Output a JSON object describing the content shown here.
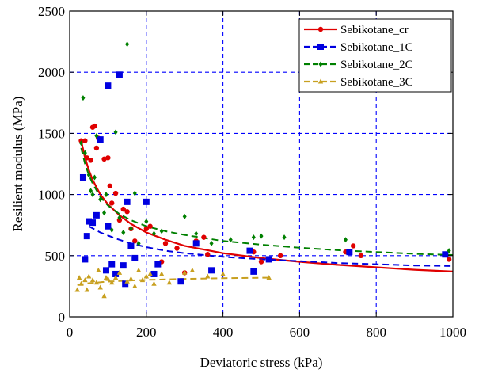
{
  "chart_data": {
    "type": "scatter",
    "title": "",
    "xlabel": "Deviatoric stress (kPa)",
    "ylabel": "Resilient modulus (MPa)",
    "xlim": [
      0,
      1000
    ],
    "ylim": [
      0,
      2500
    ],
    "xticks": [
      0,
      200,
      400,
      600,
      800,
      1000
    ],
    "yticks": [
      0,
      500,
      1000,
      1500,
      2000,
      2500
    ],
    "grid": true,
    "grid_style": "dashed",
    "legend_position": "top-right",
    "series": [
      {
        "name": "Sebikotane_cr",
        "color": "#e00000",
        "marker": "circle",
        "line_style": "solid",
        "points": [
          [
            30,
            1440
          ],
          [
            40,
            1440
          ],
          [
            45,
            1300
          ],
          [
            55,
            1280
          ],
          [
            60,
            1550
          ],
          [
            65,
            1560
          ],
          [
            70,
            1380
          ],
          [
            75,
            1460
          ],
          [
            90,
            1290
          ],
          [
            100,
            1300
          ],
          [
            105,
            1070
          ],
          [
            110,
            930
          ],
          [
            120,
            1010
          ],
          [
            130,
            790
          ],
          [
            140,
            880
          ],
          [
            150,
            860
          ],
          [
            160,
            720
          ],
          [
            170,
            620
          ],
          [
            200,
            720
          ],
          [
            210,
            740
          ],
          [
            240,
            450
          ],
          [
            250,
            600
          ],
          [
            280,
            560
          ],
          [
            300,
            360
          ],
          [
            330,
            620
          ],
          [
            350,
            650
          ],
          [
            360,
            510
          ],
          [
            480,
            530
          ],
          [
            500,
            450
          ],
          [
            550,
            500
          ],
          [
            720,
            530
          ],
          [
            740,
            580
          ],
          [
            760,
            500
          ],
          [
            990,
            470
          ]
        ],
        "fit": [
          [
            30,
            1440
          ],
          [
            40,
            1300
          ],
          [
            50,
            1200
          ],
          [
            60,
            1120
          ],
          [
            80,
            1000
          ],
          [
            100,
            920
          ],
          [
            130,
            830
          ],
          [
            160,
            760
          ],
          [
            200,
            690
          ],
          [
            250,
            630
          ],
          [
            300,
            580
          ],
          [
            400,
            520
          ],
          [
            500,
            480
          ],
          [
            600,
            450
          ],
          [
            700,
            425
          ],
          [
            800,
            405
          ],
          [
            900,
            385
          ],
          [
            1000,
            370
          ]
        ]
      },
      {
        "name": "Sebikotane_1C",
        "color": "#0000e0",
        "marker": "square",
        "line_style": "dashed",
        "points": [
          [
            35,
            1140
          ],
          [
            40,
            470
          ],
          [
            45,
            660
          ],
          [
            50,
            780
          ],
          [
            60,
            770
          ],
          [
            70,
            830
          ],
          [
            80,
            1450
          ],
          [
            95,
            380
          ],
          [
            100,
            1890
          ],
          [
            100,
            740
          ],
          [
            110,
            430
          ],
          [
            120,
            350
          ],
          [
            130,
            1980
          ],
          [
            140,
            420
          ],
          [
            145,
            270
          ],
          [
            150,
            940
          ],
          [
            160,
            580
          ],
          [
            170,
            480
          ],
          [
            200,
            940
          ],
          [
            220,
            350
          ],
          [
            230,
            430
          ],
          [
            290,
            290
          ],
          [
            330,
            600
          ],
          [
            370,
            380
          ],
          [
            470,
            540
          ],
          [
            480,
            370
          ],
          [
            520,
            470
          ],
          [
            730,
            530
          ],
          [
            980,
            510
          ]
        ],
        "fit": [
          [
            50,
            740
          ],
          [
            80,
            690
          ],
          [
            120,
            640
          ],
          [
            160,
            600
          ],
          [
            200,
            570
          ],
          [
            250,
            540
          ],
          [
            300,
            520
          ],
          [
            400,
            490
          ],
          [
            500,
            470
          ],
          [
            600,
            455
          ],
          [
            700,
            440
          ],
          [
            800,
            430
          ],
          [
            900,
            420
          ],
          [
            1000,
            415
          ]
        ]
      },
      {
        "name": "Sebikotane_2C",
        "color": "#008000",
        "marker": "diamond",
        "line_style": "dashed",
        "points": [
          [
            30,
            1420
          ],
          [
            35,
            1790
          ],
          [
            40,
            1340
          ],
          [
            50,
            1160
          ],
          [
            55,
            1030
          ],
          [
            60,
            1000
          ],
          [
            65,
            1140
          ],
          [
            70,
            1480
          ],
          [
            80,
            960
          ],
          [
            90,
            850
          ],
          [
            95,
            1000
          ],
          [
            110,
            710
          ],
          [
            120,
            1510
          ],
          [
            130,
            810
          ],
          [
            140,
            690
          ],
          [
            150,
            2230
          ],
          [
            160,
            720
          ],
          [
            170,
            1010
          ],
          [
            180,
            600
          ],
          [
            200,
            780
          ],
          [
            220,
            680
          ],
          [
            240,
            700
          ],
          [
            300,
            820
          ],
          [
            330,
            680
          ],
          [
            370,
            600
          ],
          [
            420,
            630
          ],
          [
            480,
            650
          ],
          [
            500,
            660
          ],
          [
            560,
            650
          ],
          [
            720,
            630
          ],
          [
            990,
            540
          ]
        ],
        "fit": [
          [
            30,
            1380
          ],
          [
            40,
            1250
          ],
          [
            50,
            1160
          ],
          [
            60,
            1090
          ],
          [
            80,
            980
          ],
          [
            100,
            910
          ],
          [
            130,
            840
          ],
          [
            160,
            790
          ],
          [
            200,
            740
          ],
          [
            250,
            700
          ],
          [
            300,
            670
          ],
          [
            400,
            620
          ],
          [
            500,
            590
          ],
          [
            600,
            565
          ],
          [
            700,
            545
          ],
          [
            800,
            530
          ],
          [
            900,
            515
          ],
          [
            1000,
            505
          ]
        ]
      },
      {
        "name": "Sebikotane_3C",
        "color": "#c8a020",
        "marker": "triangle",
        "line_style": "dashed",
        "points": [
          [
            20,
            220
          ],
          [
            25,
            320
          ],
          [
            30,
            270
          ],
          [
            40,
            300
          ],
          [
            45,
            220
          ],
          [
            50,
            330
          ],
          [
            60,
            300
          ],
          [
            70,
            280
          ],
          [
            75,
            380
          ],
          [
            80,
            240
          ],
          [
            90,
            170
          ],
          [
            95,
            320
          ],
          [
            100,
            310
          ],
          [
            110,
            280
          ],
          [
            120,
            320
          ],
          [
            130,
            360
          ],
          [
            150,
            290
          ],
          [
            160,
            310
          ],
          [
            170,
            250
          ],
          [
            180,
            380
          ],
          [
            190,
            300
          ],
          [
            200,
            330
          ],
          [
            210,
            350
          ],
          [
            220,
            270
          ],
          [
            240,
            350
          ],
          [
            260,
            280
          ],
          [
            300,
            360
          ],
          [
            320,
            380
          ],
          [
            360,
            330
          ],
          [
            400,
            350
          ],
          [
            520,
            320
          ]
        ],
        "fit": [
          [
            20,
            260
          ],
          [
            50,
            275
          ],
          [
            100,
            288
          ],
          [
            150,
            296
          ],
          [
            200,
            302
          ],
          [
            300,
            310
          ],
          [
            400,
            316
          ],
          [
            520,
            320
          ]
        ]
      }
    ]
  }
}
